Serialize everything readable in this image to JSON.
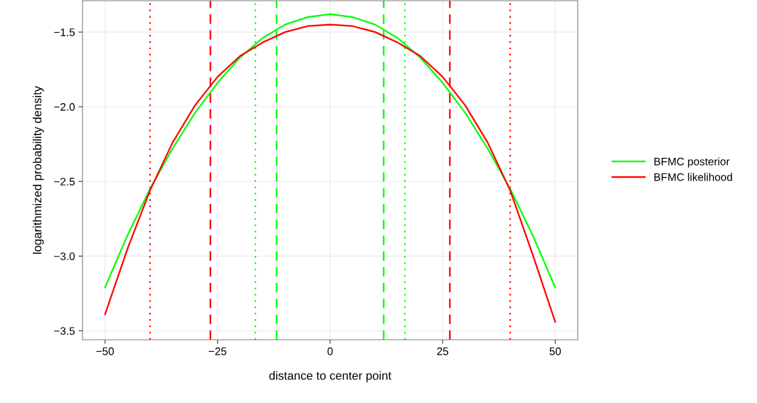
{
  "chart_data": {
    "type": "line",
    "xlabel": "distance to center point",
    "ylabel": "logarithmized probability density",
    "x": [
      -50,
      -45,
      -40,
      -35,
      -30,
      -25,
      -20,
      -15,
      -10,
      -5,
      0,
      5,
      10,
      15,
      20,
      25,
      30,
      35,
      40,
      45,
      50
    ],
    "series": [
      {
        "name": "BFMC posterior",
        "color": "#00ff00",
        "values": [
          -3.21,
          -2.86,
          -2.55,
          -2.28,
          -2.04,
          -1.84,
          -1.67,
          -1.54,
          -1.45,
          -1.4,
          -1.38,
          -1.4,
          -1.45,
          -1.54,
          -1.67,
          -1.84,
          -2.04,
          -2.28,
          -2.55,
          -2.86,
          -3.21
        ]
      },
      {
        "name": "BFMC likelihood",
        "color": "#ff0000",
        "values": [
          -3.39,
          -2.95,
          -2.56,
          -2.24,
          -1.99,
          -1.8,
          -1.66,
          -1.57,
          -1.5,
          -1.46,
          -1.45,
          -1.46,
          -1.5,
          -1.57,
          -1.66,
          -1.8,
          -1.99,
          -2.24,
          -2.56,
          -2.99,
          -3.44
        ]
      }
    ],
    "xlim": [
      -55,
      55
    ],
    "xticks": [
      {
        "value": -50,
        "label": "−50"
      },
      {
        "value": -25,
        "label": "−25"
      },
      0,
      25,
      50
    ],
    "ylim": [
      -3.56,
      -1.29
    ],
    "yticks": [
      {
        "value": -3.5,
        "label": "−3.5"
      },
      {
        "value": -3.0,
        "label": "−3.0"
      },
      {
        "value": -2.5,
        "label": "−2.5"
      },
      {
        "value": -2.0,
        "label": "−2.0"
      },
      {
        "value": -1.5,
        "label": "−1.5"
      }
    ],
    "ref_lines": [
      {
        "axis": "x",
        "value": -40.0,
        "color": "#ff0000",
        "line_style": "dotted"
      },
      {
        "axis": "x",
        "value": 40.0,
        "color": "#ff0000",
        "line_style": "dotted"
      },
      {
        "axis": "x",
        "value": -26.6,
        "color": "#ff0000",
        "line_style": "dashed"
      },
      {
        "axis": "x",
        "value": 26.6,
        "color": "#ff0000",
        "line_style": "dashed"
      },
      {
        "axis": "x",
        "value": -16.6,
        "color": "#00ff00",
        "line_style": "dotted"
      },
      {
        "axis": "x",
        "value": 16.6,
        "color": "#00ff00",
        "line_style": "dotted"
      },
      {
        "axis": "x",
        "value": -11.9,
        "color": "#00ff00",
        "line_style": "dashed"
      },
      {
        "axis": "x",
        "value": 11.9,
        "color": "#00ff00",
        "line_style": "dashed"
      }
    ],
    "grid": true,
    "legend": "right",
    "line_style": "solid"
  }
}
